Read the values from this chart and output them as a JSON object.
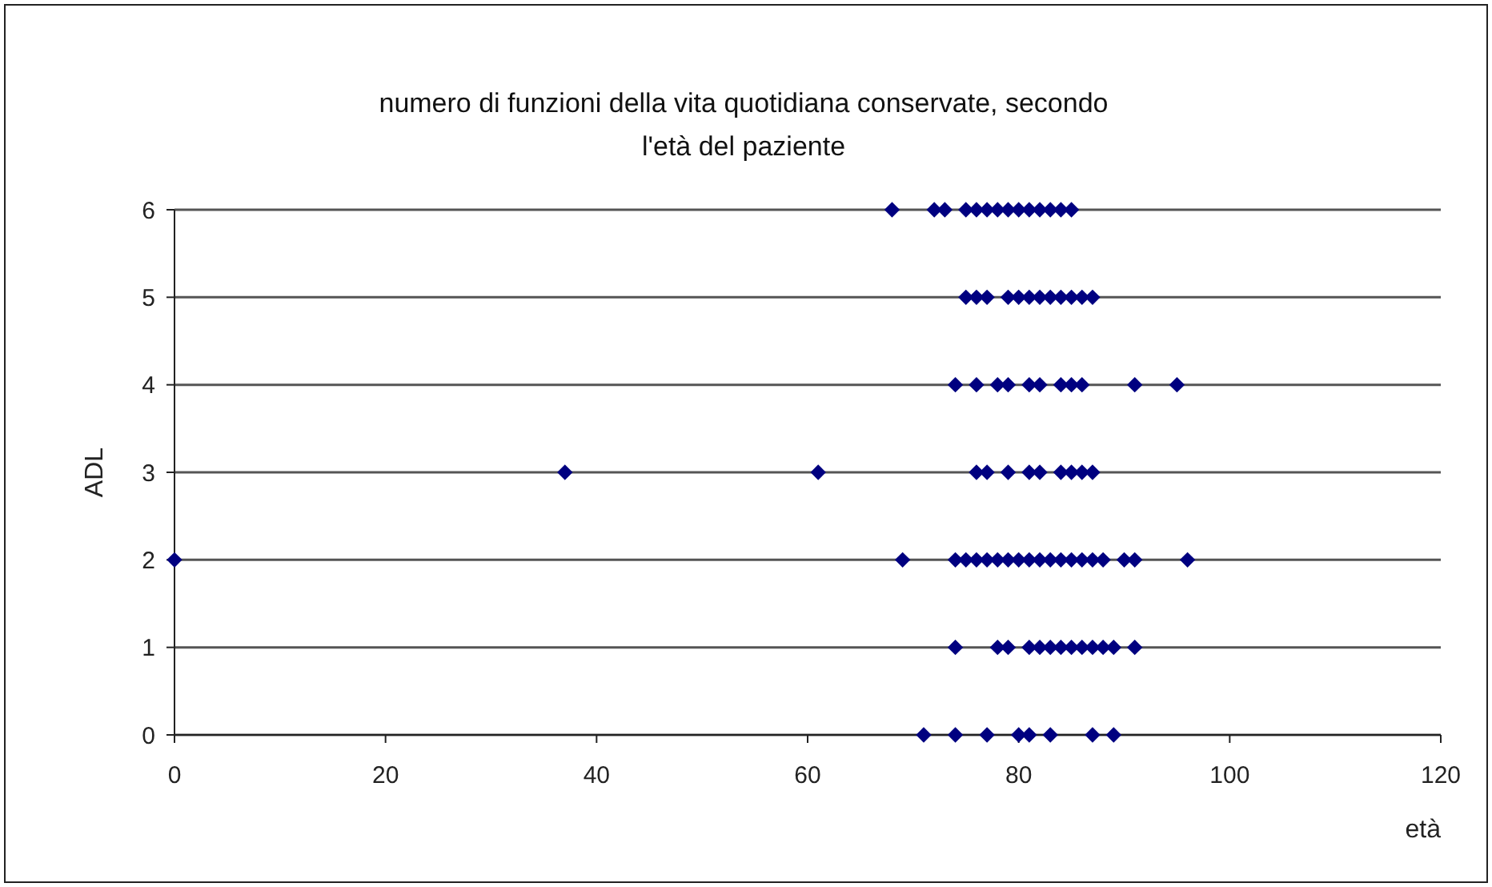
{
  "chart_data": {
    "type": "scatter",
    "title": "numero di funzioni della vita quotidiana conservate, secondo\nl'età del paziente",
    "xlabel": "età",
    "ylabel": "ADL",
    "xlim": [
      0,
      120
    ],
    "xticks": [
      0,
      20,
      40,
      60,
      80,
      100,
      120
    ],
    "ylim": [
      0,
      6
    ],
    "yticks": [
      0,
      1,
      2,
      3,
      4,
      5,
      6
    ],
    "grid": "y",
    "marker": "diamond",
    "series": [
      {
        "color": "#000080",
        "x": [
          68,
          72,
          73,
          75,
          76,
          77,
          78,
          79,
          80,
          81,
          82,
          83,
          84,
          85,
          75,
          76,
          77,
          79,
          80,
          81,
          82,
          83,
          84,
          85,
          86,
          87,
          74,
          76,
          78,
          79,
          81,
          82,
          84,
          85,
          86,
          91,
          95,
          37,
          61,
          76,
          77,
          79,
          81,
          82,
          84,
          85,
          86,
          87,
          0,
          69,
          74,
          75,
          76,
          77,
          78,
          79,
          80,
          81,
          82,
          83,
          84,
          85,
          86,
          87,
          88,
          90,
          91,
          96,
          74,
          78,
          79,
          81,
          82,
          83,
          84,
          85,
          86,
          87,
          88,
          89,
          91,
          71,
          74,
          77,
          80,
          81,
          83,
          87,
          89
        ],
        "values": [
          6,
          6,
          6,
          6,
          6,
          6,
          6,
          6,
          6,
          6,
          6,
          6,
          6,
          6,
          5,
          5,
          5,
          5,
          5,
          5,
          5,
          5,
          5,
          5,
          5,
          5,
          4,
          4,
          4,
          4,
          4,
          4,
          4,
          4,
          4,
          4,
          4,
          3,
          3,
          3,
          3,
          3,
          3,
          3,
          3,
          3,
          3,
          3,
          2,
          2,
          2,
          2,
          2,
          2,
          2,
          2,
          2,
          2,
          2,
          2,
          2,
          2,
          2,
          2,
          2,
          2,
          2,
          2,
          1,
          1,
          1,
          1,
          1,
          1,
          1,
          1,
          1,
          1,
          1,
          1,
          1,
          0,
          0,
          0,
          0,
          0,
          0,
          0,
          0
        ]
      }
    ]
  }
}
